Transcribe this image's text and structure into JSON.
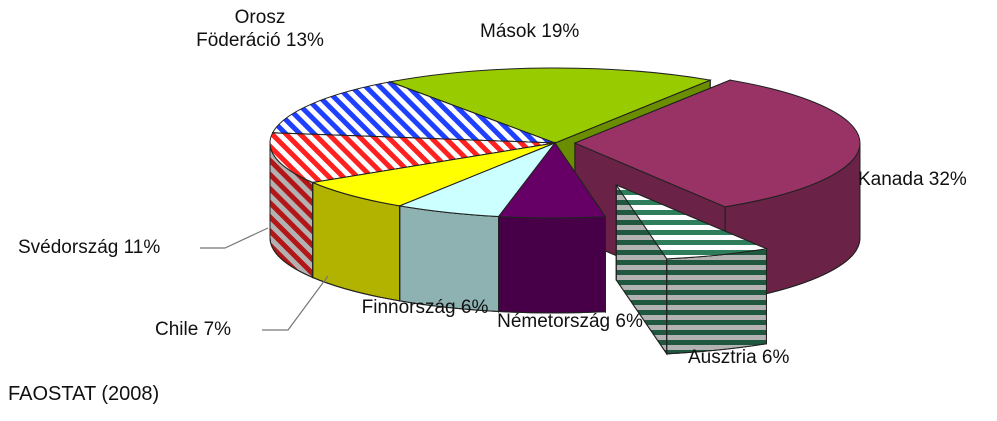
{
  "chart_data": {
    "type": "pie3d",
    "categories": [
      "Kanada",
      "Ausztria",
      "Németország",
      "Finnország",
      "Chile",
      "Svédország",
      "Orosz Föderáció",
      "Mások"
    ],
    "values": [
      32,
      6,
      6,
      6,
      7,
      11,
      13,
      19
    ],
    "value_labels": [
      "32%",
      "6%",
      "6%",
      "6%",
      "7%",
      "11%",
      "13%",
      "19%"
    ],
    "colors": [
      "#993366",
      "#2e7d5b",
      "#660066",
      "#ccffff",
      "#ffff00",
      "#ff2020",
      "#2040ff",
      "#99cc00"
    ],
    "hatch": [
      "none",
      "horizontal",
      "none",
      "none",
      "none",
      "diagonal",
      "diagonal",
      "none"
    ],
    "source": "FAOSTAT (2008)"
  }
}
